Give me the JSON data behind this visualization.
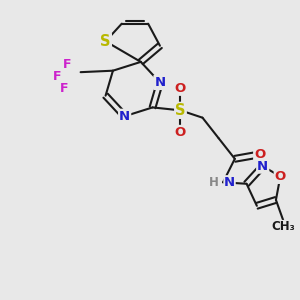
{
  "bg_color": "#e8e8e8",
  "bond_color": "#1a1a1a",
  "bond_width": 1.5,
  "atom_colors": {
    "S": "#b8b800",
    "N": "#2020cc",
    "O": "#cc2020",
    "F": "#cc22cc",
    "H": "#888888",
    "C": "#1a1a1a"
  },
  "font_size": 9.5
}
